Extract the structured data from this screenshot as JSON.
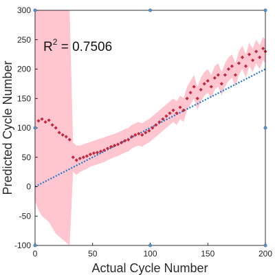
{
  "chart_data": {
    "type": "scatter",
    "xlabel": "Actual Cycle Number",
    "ylabel": "Predicted Cycle Number",
    "xlim": [
      0,
      200
    ],
    "ylim": [
      -100,
      300
    ],
    "xticks": [
      0,
      50,
      100,
      150,
      200
    ],
    "yticks": [
      -100,
      -50,
      0,
      50,
      100,
      150,
      200,
      250,
      300
    ],
    "grid": false,
    "annotation": {
      "base": "R",
      "sup": "2",
      "rest": " = 0.7506"
    },
    "colors": {
      "points": "#c0293f",
      "band": "#ffc6cf",
      "ideal_line": "#1f77c4",
      "axis": "#000000",
      "corner_markers": "#5b8fc7"
    },
    "ideal_line": {
      "x": [
        0,
        200
      ],
      "y": [
        0,
        200
      ]
    },
    "x": [
      0,
      3,
      6,
      9,
      12,
      15,
      18,
      21,
      24,
      27,
      30,
      33,
      36,
      39,
      42,
      45,
      48,
      51,
      54,
      57,
      60,
      63,
      66,
      69,
      72,
      75,
      78,
      81,
      84,
      87,
      90,
      93,
      96,
      99,
      102,
      105,
      108,
      111,
      114,
      117,
      120,
      123,
      126,
      129,
      132,
      135,
      138,
      141,
      144,
      147,
      150,
      153,
      156,
      159,
      162,
      165,
      168,
      171,
      174,
      177,
      180,
      183,
      186,
      189,
      192,
      195,
      198,
      200
    ],
    "y": [
      100,
      112,
      115,
      110,
      113,
      105,
      100,
      92,
      88,
      85,
      80,
      50,
      45,
      48,
      50,
      52,
      55,
      57,
      58,
      60,
      62,
      65,
      68,
      70,
      72,
      75,
      78,
      80,
      85,
      88,
      90,
      88,
      92,
      95,
      100,
      105,
      110,
      115,
      120,
      125,
      130,
      125,
      135,
      130,
      150,
      160,
      170,
      150,
      165,
      175,
      180,
      170,
      185,
      190,
      175,
      190,
      200,
      205,
      190,
      210,
      220,
      205,
      225,
      215,
      230,
      220,
      235,
      230
    ],
    "band_upper": [
      300,
      300,
      300,
      300,
      300,
      300,
      300,
      300,
      300,
      300,
      300,
      75,
      70,
      70,
      72,
      74,
      76,
      78,
      80,
      82,
      84,
      86,
      88,
      90,
      92,
      95,
      98,
      100,
      105,
      108,
      110,
      108,
      112,
      115,
      120,
      125,
      130,
      135,
      140,
      145,
      150,
      145,
      155,
      150,
      170,
      180,
      190,
      170,
      185,
      195,
      200,
      190,
      205,
      210,
      195,
      210,
      220,
      225,
      210,
      230,
      240,
      225,
      245,
      235,
      250,
      240,
      255,
      250
    ],
    "band_lower": [
      -25,
      -40,
      -50,
      -55,
      -60,
      -70,
      -80,
      -85,
      -90,
      -95,
      -100,
      25,
      20,
      25,
      28,
      30,
      34,
      36,
      38,
      40,
      42,
      45,
      48,
      50,
      52,
      55,
      58,
      60,
      65,
      68,
      70,
      68,
      72,
      75,
      80,
      85,
      90,
      95,
      100,
      105,
      110,
      105,
      115,
      110,
      130,
      140,
      150,
      130,
      145,
      155,
      160,
      150,
      165,
      170,
      155,
      170,
      180,
      185,
      170,
      190,
      200,
      185,
      205,
      195,
      210,
      200,
      215,
      210
    ]
  }
}
